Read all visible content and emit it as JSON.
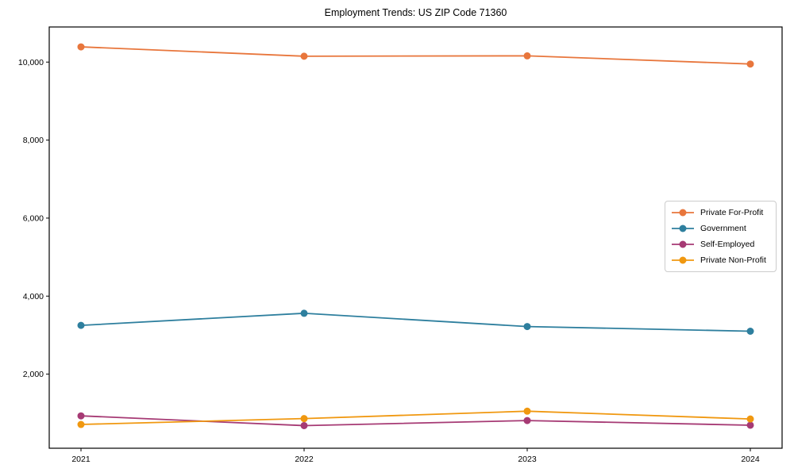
{
  "title": "Employment Trends: US ZIP Code 71360",
  "chart_data": {
    "type": "line",
    "title": "Employment Trends: US ZIP Code 71360",
    "x": [
      "2021",
      "2022",
      "2023",
      "2024"
    ],
    "series": [
      {
        "name": "Private For-Profit",
        "color": "#e8763c",
        "values": [
          10390,
          10150,
          10160,
          9950
        ]
      },
      {
        "name": "Government",
        "color": "#2e7f9e",
        "values": [
          3250,
          3560,
          3220,
          3100
        ]
      },
      {
        "name": "Self-Employed",
        "color": "#a63a74",
        "values": [
          930,
          680,
          810,
          690
        ]
      },
      {
        "name": "Private Non-Profit",
        "color": "#f09810",
        "values": [
          710,
          860,
          1050,
          850
        ]
      }
    ],
    "xlabel": "",
    "ylabel": "",
    "ylim": [
      100,
      10900
    ],
    "yticks": [
      2000,
      4000,
      6000,
      8000,
      10000
    ],
    "ytick_labels": [
      "2,000",
      "4,000",
      "6,000",
      "8,000",
      "10,000"
    ],
    "grid": false,
    "legend_position": "center-right",
    "marker": "circle",
    "spine_color": "#000000",
    "legend_border_color": "#cccccc",
    "background_color": "#ffffff"
  }
}
